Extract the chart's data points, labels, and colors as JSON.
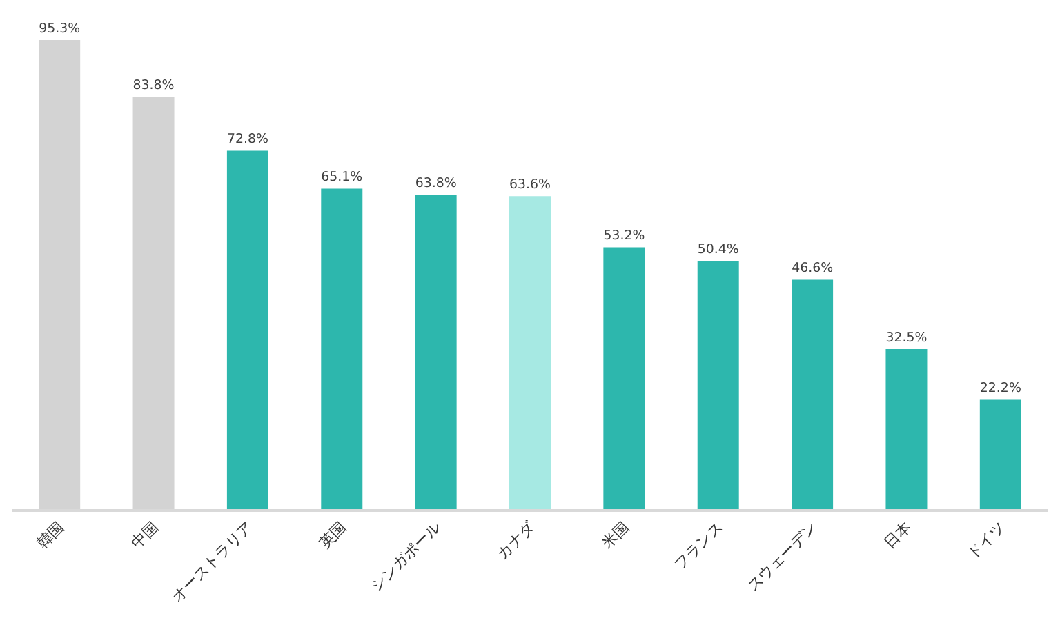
{
  "chart_data": {
    "type": "bar",
    "categories": [
      "韓国",
      "中国",
      "オーストラリア",
      "英国",
      "シンガポール",
      "カナダ",
      "米国",
      "フランス",
      "スウェーデン",
      "日本",
      "ドイツ"
    ],
    "values": [
      95.3,
      83.8,
      72.8,
      65.1,
      63.8,
      63.6,
      53.2,
      50.4,
      46.6,
      32.5,
      22.2
    ],
    "colors": [
      "#d3d3d3",
      "#d3d3d3",
      "#2db7ad",
      "#2db7ad",
      "#2db7ad",
      "#a6e9e3",
      "#2db7ad",
      "#2db7ad",
      "#2db7ad",
      "#2db7ad",
      "#2db7ad"
    ],
    "value_labels": [
      "95.3%",
      "83.8%",
      "72.8%",
      "65.1%",
      "63.8%",
      "63.6%",
      "53.2%",
      "50.4%",
      "46.6%",
      "32.5%",
      "22.2%"
    ]
  }
}
